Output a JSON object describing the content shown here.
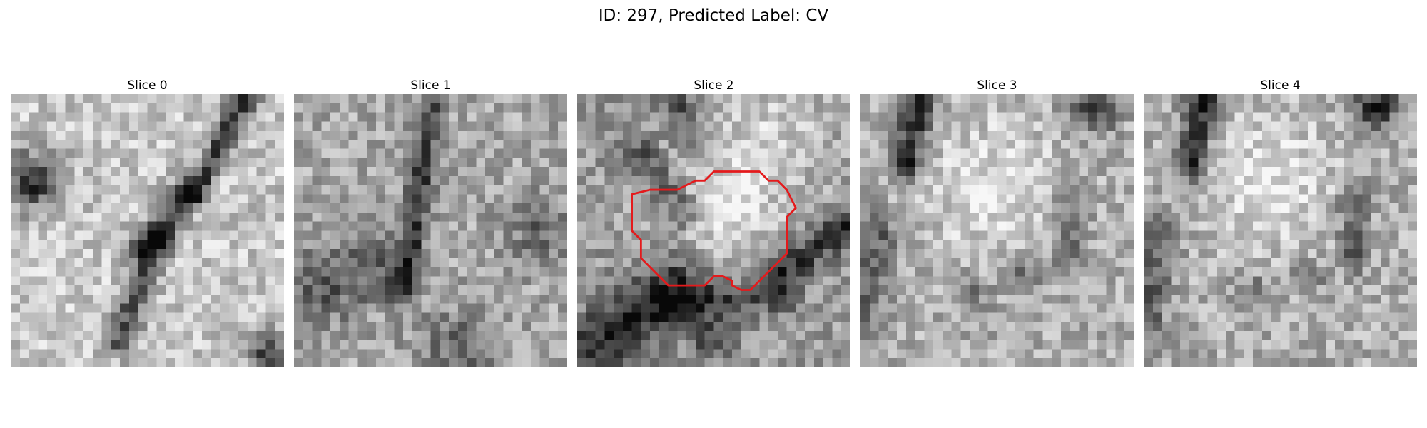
{
  "figure": {
    "title": "ID: 297, Predicted Label: CV"
  },
  "slices": [
    {
      "label": "Slice 0",
      "pattern": "diagonal-structures-dark-blob-left",
      "seed": 11
    },
    {
      "label": "Slice 1",
      "pattern": "noisy-texture-dark-diagonal",
      "seed": 23
    },
    {
      "label": "Slice 2",
      "pattern": "bright-center-with-red-contour",
      "seed": 37,
      "has_contour": true
    },
    {
      "label": "Slice 3",
      "pattern": "bright-center-dark-corners",
      "seed": 51
    },
    {
      "label": "Slice 4",
      "pattern": "bright-center-dark-corners",
      "seed": 67
    }
  ],
  "colors": {
    "contour": "#e41a1c",
    "background": "#ffffff"
  }
}
